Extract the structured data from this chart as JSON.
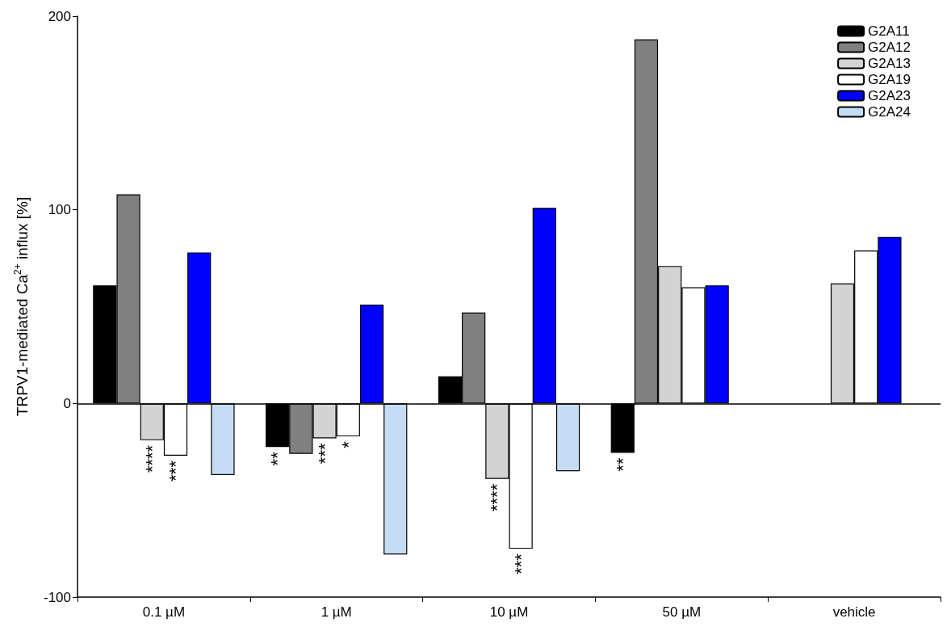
{
  "chart_data": {
    "type": "bar",
    "ylabel": "TRPV1-mediated Ca$^{2+}$ influx [%]",
    "categories": [
      "0.1 µM",
      "1 µM",
      "10 µM",
      "50 µM",
      "vehicle"
    ],
    "series": [
      {
        "name": "G2A11",
        "color": "#000000",
        "values": [
          61,
          -22.5,
          14,
          -25.5,
          null
        ]
      },
      {
        "name": "G2A12",
        "color": "#808080",
        "values": [
          108,
          -26,
          47,
          188,
          null
        ]
      },
      {
        "name": "G2A13",
        "color": "#d3d3d3",
        "values": [
          -19,
          -18,
          -39,
          71,
          62
        ]
      },
      {
        "name": "G2A19",
        "color": "#ffffff",
        "values": [
          -27,
          -17,
          -75,
          60,
          79
        ]
      },
      {
        "name": "G2A23",
        "color": "#0000ff",
        "values": [
          78,
          51,
          101,
          61,
          86
        ]
      },
      {
        "name": "G2A24",
        "color": "#c6dcf5",
        "values": [
          -37,
          -78,
          -35,
          null,
          null
        ]
      }
    ],
    "ylim": [
      -100,
      200
    ],
    "yticks": [
      -100,
      0,
      100,
      200
    ],
    "grid": false,
    "legend": "top right",
    "ref_lines": [
      {
        "axis": "y",
        "value": 0
      }
    ],
    "annotations": [
      {
        "text": "****",
        "x": "0.1 µM",
        "y": -19
      },
      {
        "text": "***",
        "x": "0.1 µM",
        "y": -27
      },
      {
        "text": "**",
        "y": -22.5
      },
      {
        "text": "***",
        "x": "1 µM",
        "y": -18
      },
      {
        "text": "*",
        "x": "1 µM",
        "y": -17
      },
      {
        "text": "****",
        "x": "10 µM",
        "y": -39
      },
      {
        "text": "***",
        "x": "10 µM",
        "y": -75
      },
      {
        "text": "**",
        "y": -25.5
      }
    ]
  }
}
